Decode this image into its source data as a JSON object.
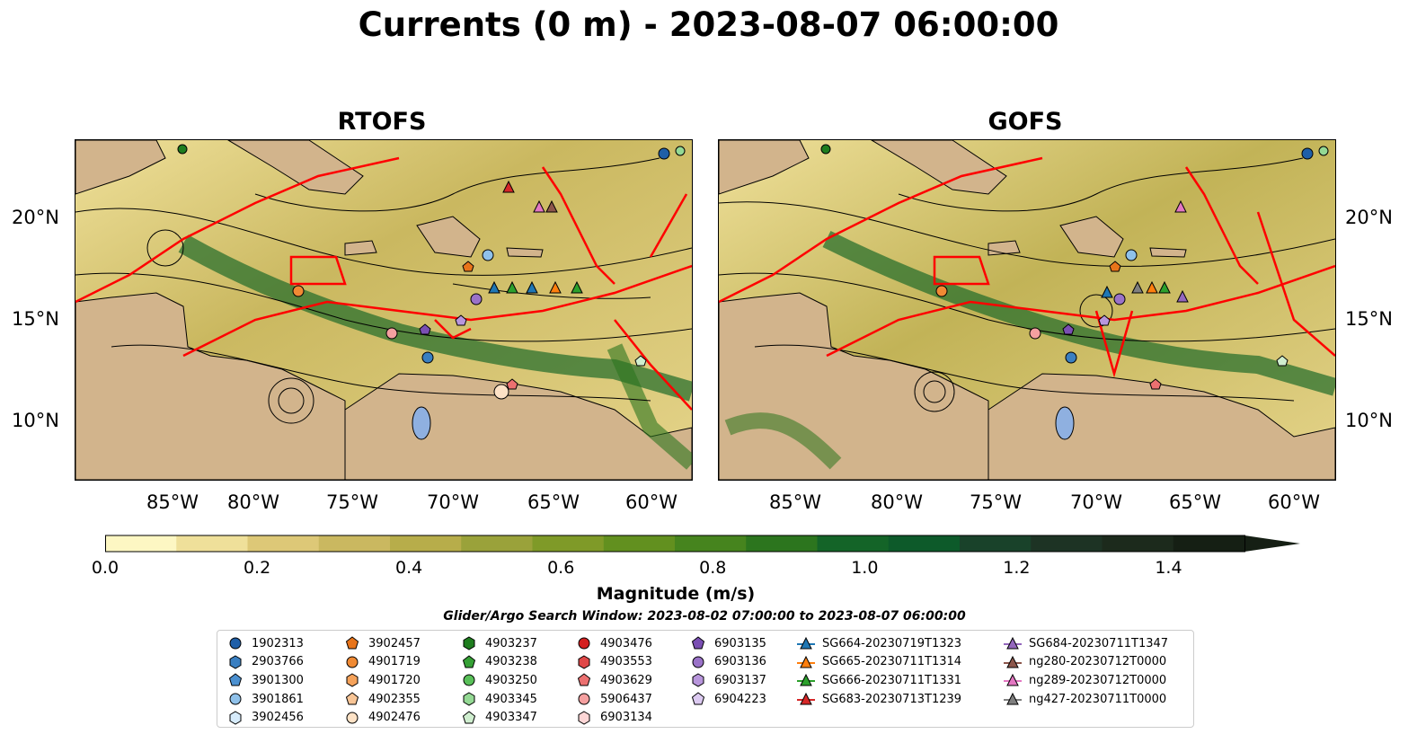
{
  "title": "Currents (0 m) - 2023-08-07 06:00:00",
  "panels": [
    {
      "title": "RTOFS"
    },
    {
      "title": "GOFS"
    }
  ],
  "lat_labels": [
    "20°N",
    "15°N",
    "10°N"
  ],
  "lon_labels": [
    "85°W",
    "80°W",
    "75°W",
    "70°W",
    "65°W",
    "60°W"
  ],
  "colorbar": {
    "label": "Magnitude (m/s)",
    "ticks": [
      "0.0",
      "0.2",
      "0.4",
      "0.6",
      "0.8",
      "1.0",
      "1.2",
      "1.4"
    ],
    "colors": [
      "#fdf7c3",
      "#efe09a",
      "#ddc877",
      "#cab860",
      "#b7ad4a",
      "#9aa23a",
      "#7f9a28",
      "#62901f",
      "#46841e",
      "#2c751e",
      "#146428",
      "#0d5a2a",
      "#19422a",
      "#1d3324",
      "#1c2a1c",
      "#151f14"
    ]
  },
  "search_window": "Glider/Argo Search Window: 2023-08-02 07:00:00 to 2023-08-07 06:00:00",
  "legend": {
    "columns": [
      [
        {
          "label": "1902313",
          "marker": "circle",
          "color": "#1f5fa8"
        },
        {
          "label": "2903766",
          "marker": "hexagon",
          "color": "#3a7fc1"
        },
        {
          "label": "3901300",
          "marker": "pentagon",
          "color": "#4b90d0"
        },
        {
          "label": "3901861",
          "marker": "circle",
          "color": "#8fc1ea"
        },
        {
          "label": "3902456",
          "marker": "hexagon",
          "color": "#d6ebfb"
        }
      ],
      [
        {
          "label": "3902457",
          "marker": "pentagon",
          "color": "#e8741a"
        },
        {
          "label": "4901719",
          "marker": "circle",
          "color": "#f08a34"
        },
        {
          "label": "4901720",
          "marker": "hexagon",
          "color": "#f5a25a"
        },
        {
          "label": "4902355",
          "marker": "pentagon",
          "color": "#f8c596"
        },
        {
          "label": "4902476",
          "marker": "circle",
          "color": "#fde2c6"
        }
      ],
      [
        {
          "label": "4903237",
          "marker": "hexagon",
          "color": "#1e7d1e"
        },
        {
          "label": "4903238",
          "marker": "pentagon",
          "color": "#35a035"
        },
        {
          "label": "4903250",
          "marker": "circle",
          "color": "#59c059"
        },
        {
          "label": "4903345",
          "marker": "hexagon",
          "color": "#94d994"
        },
        {
          "label": "4903347",
          "marker": "pentagon",
          "color": "#cfeecf"
        }
      ],
      [
        {
          "label": "4903476",
          "marker": "circle",
          "color": "#d42020"
        },
        {
          "label": "4903553",
          "marker": "hexagon",
          "color": "#e04848"
        },
        {
          "label": "4903629",
          "marker": "pentagon",
          "color": "#ec7070"
        },
        {
          "label": "5906437",
          "marker": "circle",
          "color": "#f5a0a0"
        },
        {
          "label": "6903134",
          "marker": "hexagon",
          "color": "#fdd6d6"
        }
      ],
      [
        {
          "label": "6903135",
          "marker": "pentagon",
          "color": "#7a4fb3"
        },
        {
          "label": "6903136",
          "marker": "circle",
          "color": "#9a72c8"
        },
        {
          "label": "6903137",
          "marker": "hexagon",
          "color": "#b896dc"
        },
        {
          "label": "6904223",
          "marker": "pentagon",
          "color": "#dccaf1"
        }
      ],
      [
        {
          "label": "SG664-20230719T1323",
          "marker": "triangle-line",
          "color": "#1f77b4"
        },
        {
          "label": "SG665-20230711T1314",
          "marker": "triangle-line",
          "color": "#ff7f0e"
        },
        {
          "label": "SG666-20230711T1331",
          "marker": "triangle-line",
          "color": "#2ca02c"
        },
        {
          "label": "SG683-20230713T1239",
          "marker": "triangle-line",
          "color": "#d62728"
        }
      ],
      [
        {
          "label": "SG684-20230711T1347",
          "marker": "triangle-line",
          "color": "#9467bd"
        },
        {
          "label": "ng280-20230712T0000",
          "marker": "triangle-line",
          "color": "#8c564b"
        },
        {
          "label": "ng289-20230712T0000",
          "marker": "triangle-line",
          "color": "#e377c2"
        },
        {
          "label": "ng427-20230711T0000",
          "marker": "triangle-line",
          "color": "#7f7f7f"
        }
      ]
    ]
  },
  "colors": {
    "land": "#d2b48c",
    "tracks": "#ff0000",
    "lakes": "#8fb0e0",
    "streamlines": "#000000"
  }
}
